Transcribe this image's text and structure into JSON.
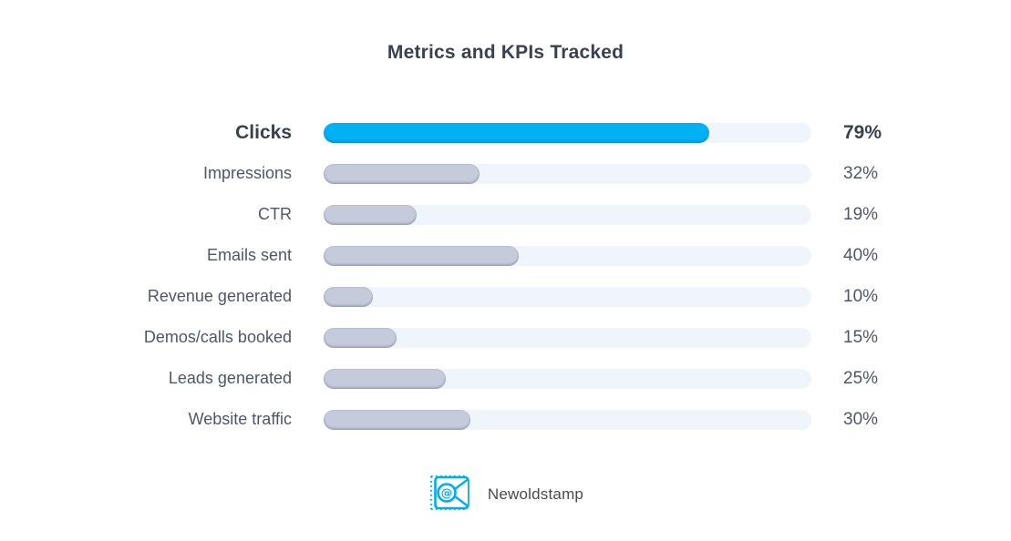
{
  "title": "Metrics and KPIs Tracked",
  "colors": {
    "highlight_bar": "#00b1f3",
    "bar": "#c5cbdb",
    "track": "#f0f4fb",
    "title_text": "#3a4252",
    "label_text": "#4d566b",
    "highlight_text": "#39404f",
    "logo": "#00adef",
    "background": "#ffffff"
  },
  "chart_data": {
    "type": "bar",
    "orientation": "horizontal",
    "title": "Metrics and KPIs Tracked",
    "categories": [
      "Clicks",
      "Impressions",
      "CTR",
      "Emails sent",
      "Revenue generated",
      "Demos/calls booked",
      "Leads generated",
      "Website traffic"
    ],
    "values": [
      79,
      32,
      19,
      40,
      10,
      15,
      25,
      30
    ],
    "value_suffix": "%",
    "xlim": [
      0,
      100
    ],
    "grid": false,
    "legend": "none",
    "highlighted_category": "Clicks",
    "highlight_color": "#00b1f3",
    "bar_color": "#c5cbdb",
    "track_color": "#f0f4fb"
  },
  "footer": {
    "brand": "Newoldstamp",
    "logo_icon": "stamp-envelope-at-icon"
  }
}
